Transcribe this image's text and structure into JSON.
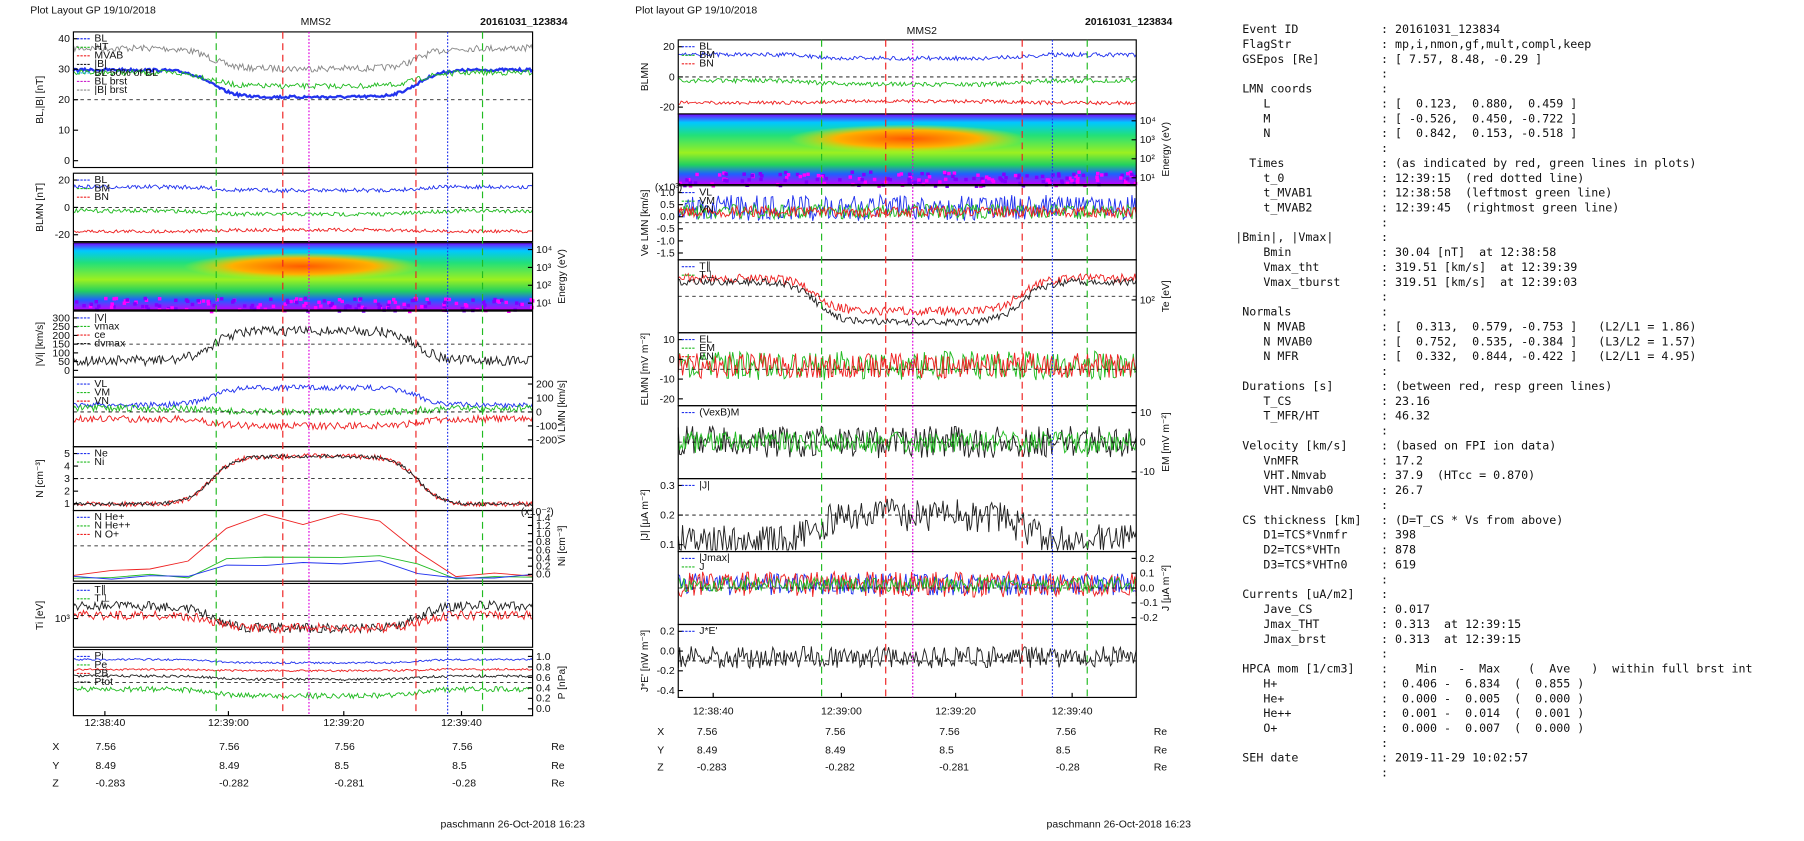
{
  "left": {
    "layout": "Plot Layout GP 19/10/2018",
    "title": "MMS2",
    "event": "20161031_123834",
    "panels": [
      {
        "label": "BL,|B| [nT]",
        "ticks": [
          "40",
          "30",
          "20",
          "10",
          "0"
        ],
        "legend": [
          "BL",
          "HT",
          "MVAB",
          "|B|",
          "BL 50% of BL",
          "BL brst",
          "|B| brst"
        ]
      },
      {
        "label": "BLMN [nT]",
        "ticks": [
          "20",
          "0",
          "-20"
        ],
        "legend": [
          "BL",
          "BM",
          "BN"
        ]
      },
      {
        "rlabel": "Energy (eV)",
        "rticks": [
          "10⁴",
          "10³",
          "10²",
          "10¹"
        ]
      },
      {
        "label": "|Vi| [km/s]",
        "ticks": [
          "300",
          "250",
          "200",
          "150",
          "100",
          "50",
          "0"
        ],
        "legend": [
          "|V|",
          "vmax",
          "ce",
          "dvmax"
        ]
      },
      {
        "rlabel": "Vi LMN [km/s]",
        "rticks": [
          "200",
          "100",
          "0",
          "-100",
          "-200"
        ],
        "legend": [
          "VL",
          "VM",
          "VN"
        ]
      },
      {
        "label": "N [cm⁻³]",
        "ticks": [
          "5",
          "4",
          "3",
          "2",
          "1"
        ],
        "legend": [
          "Ne",
          "Ni"
        ]
      },
      {
        "rlabel": "Ni [cm⁻³]",
        "rticks": [
          "1.4",
          "1.2",
          "1.0",
          "0.8",
          "0.6",
          "0.4",
          "0.2",
          "0.0"
        ],
        "note": "(x10⁻²)",
        "legend": [
          "N He+",
          "N He++",
          "N O+"
        ]
      },
      {
        "label": "Ti [eV]",
        "ticks": [
          "10³"
        ],
        "legend": [
          "T∥",
          "T⊥"
        ]
      },
      {
        "rlabel": "P [nPa]",
        "rticks": [
          "1.0",
          "0.8",
          "0.6",
          "0.4",
          "0.2",
          "0.0"
        ],
        "legend": [
          "Pi",
          "Pe",
          "PB",
          "Ptot"
        ]
      }
    ],
    "xticks": [
      "12:38:40",
      "12:39:00",
      "12:39:20",
      "12:39:40"
    ],
    "ephem": [
      {
        "name": "X",
        "values": [
          "7.56",
          "7.56",
          "7.56",
          "7.56"
        ],
        "unit": "Re"
      },
      {
        "name": "Y",
        "values": [
          "8.49",
          "8.49",
          "8.5",
          "8.5"
        ],
        "unit": "Re"
      },
      {
        "name": "Z",
        "values": [
          "-0.283",
          "-0.282",
          "-0.281",
          "-0.28"
        ],
        "unit": "Re"
      }
    ],
    "footer": "paschmann 26-Oct-2018 16:23"
  },
  "right": {
    "layout": "Plot layout GP 19/10/2018",
    "title": "MMS2",
    "event": "20161031_123834",
    "panels": [
      {
        "label": "BLMN",
        "ticks": [
          "20",
          "0",
          "-20"
        ],
        "legend": [
          "BL",
          "BM",
          "BN"
        ]
      },
      {
        "rlabel": "Energy (eV)",
        "rticks": [
          "10⁴",
          "10³",
          "10²",
          "10¹"
        ]
      },
      {
        "label": "Ve LMN [km/s]",
        "ticks": [
          "1.0",
          "0.5",
          "0.0",
          "-0.5",
          "-1.0",
          "-1.5"
        ],
        "note": "(x10³)",
        "legend": [
          "VL",
          "VM",
          "VN"
        ]
      },
      {
        "rlabel": "Te [eV]",
        "rticks": [
          "10²"
        ],
        "legend": [
          "T∥",
          "T⊥"
        ]
      },
      {
        "label": "ELMN [mV m⁻²]",
        "ticks": [
          "10",
          "0",
          "-10",
          "-20"
        ],
        "legend": [
          "EL",
          "EM",
          "EN"
        ]
      },
      {
        "rlabel": "EM [mV m⁻²]",
        "rticks": [
          "10",
          "0",
          "-10"
        ],
        "legend": [
          "(VexB)M"
        ]
      },
      {
        "label": "|J| [μA m⁻²]",
        "ticks": [
          "0.3",
          "0.2",
          "0.1"
        ],
        "legend": [
          "|J|"
        ]
      },
      {
        "rlabel": "J [μA m⁻²]",
        "rticks": [
          "0.2",
          "0.1",
          "0.0",
          "-0.1",
          "-0.2"
        ],
        "legend": [
          "|Jmax|",
          "J"
        ]
      },
      {
        "label": "J*E' [nW m⁻³]",
        "ticks": [
          "0.2",
          "0.0",
          "-0.2",
          "-0.4"
        ],
        "legend": [
          "J*E'"
        ]
      }
    ],
    "xticks": [
      "12:38:40",
      "12:39:00",
      "12:39:20",
      "12:39:40"
    ],
    "ephem": [
      {
        "name": "X",
        "values": [
          "7.56",
          "7.56",
          "7.56",
          "7.56"
        ],
        "unit": "Re"
      },
      {
        "name": "Y",
        "values": [
          "8.49",
          "8.49",
          "8.5",
          "8.5"
        ],
        "unit": "Re"
      },
      {
        "name": "Z",
        "values": [
          "-0.283",
          "-0.282",
          "-0.281",
          "-0.28"
        ],
        "unit": "Re"
      }
    ],
    "footer": "paschmann 26-Oct-2018 16:23"
  },
  "info": [
    {
      "key": " Event ID",
      "value": ": 20161031_123834"
    },
    {
      "key": " FlagStr",
      "value": ": mp,i,nmon,gf,mult,compl,keep"
    },
    {
      "key": " GSEpos [Re]",
      "value": ": [ 7.57, 8.48, -0.29 ]"
    },
    {
      "value": ":"
    },
    {
      "key": " LMN coords",
      "value": ":"
    },
    {
      "key": "    L",
      "value": ": [  0.123,  0.880,  0.459 ]"
    },
    {
      "key": "    M",
      "value": ": [ -0.526,  0.450, -0.722 ]"
    },
    {
      "key": "    N",
      "value": ": [  0.842,  0.153, -0.518 ]"
    },
    {
      "value": ":"
    },
    {
      "key": "  Times",
      "value": ": (as indicated by red, green lines in plots)"
    },
    {
      "key": "    t_0",
      "value": ": 12:39:15  (red dotted line)"
    },
    {
      "key": "    t_MVAB1",
      "value": ": 12:38:58  (leftmost green line)"
    },
    {
      "key": "    t_MVAB2",
      "value": ": 12:39:45  (rightmost green line)"
    },
    {
      "value": ":"
    },
    {
      "key": "|Bmin|, |Vmax|",
      "value": ":"
    },
    {
      "key": "    Bmin",
      "value": ": 30.04 [nT]  at 12:38:58"
    },
    {
      "key": "    Vmax_tht",
      "value": ": 319.51 [km/s]  at 12:39:39"
    },
    {
      "key": "    Vmax_tburst",
      "value": ": 319.51 [km/s]  at 12:39:03"
    },
    {
      "value": ":"
    },
    {
      "key": " Normals",
      "value": ":"
    },
    {
      "key": "    N MVAB",
      "value": ": [  0.313,  0.579, -0.753 ]   (L2/L1 = 1.86)"
    },
    {
      "key": "    N MVAB0",
      "value": ": [  0.752,  0.535, -0.384 ]   (L3/L2 = 1.57)"
    },
    {
      "key": "    N MFR",
      "value": ": [  0.332,  0.844, -0.422 ]   (L2/L1 = 4.95)"
    },
    {
      "value": ":"
    },
    {
      "key": " Durations [s]",
      "value": ": (between red, resp green lines)"
    },
    {
      "key": "    T_CS",
      "value": ": 23.16"
    },
    {
      "key": "    T_MFR/HT",
      "value": ": 46.32"
    },
    {
      "value": ":"
    },
    {
      "key": " Velocity [km/s]",
      "value": ": (based on FPI ion data)"
    },
    {
      "key": "    VnMFR",
      "value": ": 17.2"
    },
    {
      "key": "    VHT.Nmvab",
      "value": ": 37.9  (HTcc = 0.870)"
    },
    {
      "key": "    VHT.Nmvab0",
      "value": ": 26.7"
    },
    {
      "value": ":"
    },
    {
      "key": " CS thickness [km]",
      "value": ": (D=T_CS * Vs from above)"
    },
    {
      "key": "    D1=TCS*Vnmfr",
      "value": ": 398"
    },
    {
      "key": "    D2=TCS*VHTn",
      "value": ": 878"
    },
    {
      "key": "    D3=TCS*VHTn0",
      "value": ": 619"
    },
    {
      "value": ":"
    },
    {
      "key": " Currents [uA/m2]",
      "value": ":"
    },
    {
      "key": "    Jave_CS",
      "value": ": 0.017"
    },
    {
      "key": "    Jmax_THT",
      "value": ": 0.313  at 12:39:15"
    },
    {
      "key": "    Jmax_brst",
      "value": ": 0.313  at 12:39:15"
    },
    {
      "value": ":"
    },
    {
      "key": " HPCA mom [1/cm3]",
      "value": ":    Min   -  Max    (  Ave   )  within full brst int"
    },
    {
      "key": "    H+",
      "value": ":  0.406 -  6.834  (  0.855 )"
    },
    {
      "key": "    He+",
      "value": ":  0.000 -  0.005  (  0.000 )"
    },
    {
      "key": "    He++",
      "value": ":  0.001 -  0.014  (  0.001 )"
    },
    {
      "key": "    O+",
      "value": ":  0.000 -  0.007  (  0.000 )"
    },
    {
      "value": ":"
    },
    {
      "key": " SEH date",
      "value": ": 2019-11-29 10:02:57"
    },
    {
      "value": ":"
    }
  ]
}
